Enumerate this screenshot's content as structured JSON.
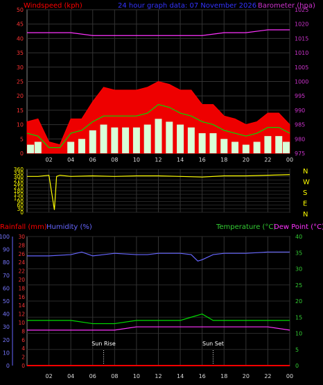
{
  "chart_data": [
    {
      "type": "line",
      "title": "24 hour graph data: 07 November 2026",
      "left_axis_label": "Windspeed (kph)",
      "right_axis_label": "Barometer (hpa)",
      "x_ticks": [
        "02",
        "04",
        "06",
        "08",
        "10",
        "12",
        "14",
        "16",
        "18",
        "20",
        "22",
        "00"
      ],
      "x_range_hours": [
        0,
        24
      ],
      "grid": true,
      "left_ylim": [
        0,
        50
      ],
      "left_ticks": [
        0,
        5,
        10,
        15,
        20,
        25,
        30,
        35,
        40,
        45,
        50
      ],
      "right_ylim": [
        975,
        1025
      ],
      "right_ticks": [
        975,
        980,
        985,
        990,
        995,
        1000,
        1005,
        1010,
        1015,
        1020,
        1025
      ],
      "series": [
        {
          "color": "#ff0000",
          "style": "area",
          "x": [
            0,
            1,
            2,
            3,
            4,
            5,
            6,
            7,
            8,
            9,
            10,
            11,
            12,
            13,
            14,
            15,
            16,
            17,
            18,
            19,
            20,
            21,
            22,
            23,
            24
          ],
          "values": [
            11,
            12,
            4,
            3,
            12,
            12,
            18,
            23,
            22,
            22,
            22,
            23,
            25,
            24,
            22,
            22,
            17,
            17,
            13,
            12,
            10,
            11,
            14,
            14,
            10
          ]
        },
        {
          "color": "#00cc00",
          "style": "line",
          "x": [
            0,
            1,
            2,
            3,
            4,
            5,
            6,
            7,
            8,
            9,
            10,
            11,
            12,
            13,
            14,
            15,
            16,
            17,
            18,
            19,
            20,
            21,
            22,
            23,
            24
          ],
          "values": [
            7,
            6,
            2,
            2,
            7,
            8,
            11,
            13,
            13,
            13,
            13,
            14,
            17,
            16,
            14,
            13,
            11,
            10,
            8,
            7,
            6,
            7,
            9,
            9,
            7
          ]
        },
        {
          "color": "#ffffff",
          "style": "bars",
          "x": [
            0,
            1,
            2,
            3,
            4,
            5,
            6,
            7,
            8,
            9,
            10,
            11,
            12,
            13,
            14,
            15,
            16,
            17,
            18,
            19,
            20,
            21,
            22,
            23,
            24
          ],
          "values": [
            3,
            4,
            0,
            0,
            4,
            5,
            8,
            10,
            9,
            9,
            9,
            10,
            12,
            11,
            10,
            9,
            7,
            7,
            5,
            4,
            3,
            4,
            6,
            6,
            4
          ]
        },
        {
          "color": "#ff00ff",
          "style": "line",
          "axis": "right",
          "x": [
            0,
            2,
            4,
            6,
            8,
            10,
            12,
            14,
            16,
            18,
            20,
            22,
            24
          ],
          "values": [
            1017,
            1017,
            1017,
            1016,
            1016,
            1016,
            1016,
            1016,
            1016,
            1017,
            1017,
            1018,
            1018
          ]
        }
      ]
    },
    {
      "type": "line",
      "title": "",
      "ylim": [
        0,
        360
      ],
      "y_ticks": [
        0,
        30,
        60,
        90,
        120,
        150,
        180,
        210,
        240,
        270,
        300,
        330,
        360
      ],
      "compass_labels": [
        "N",
        "W",
        "S",
        "E",
        "N"
      ],
      "series": [
        {
          "color": "#ffff00",
          "x": [
            0,
            1,
            2,
            2.5,
            2.7,
            3,
            4,
            6,
            8,
            10,
            12,
            14,
            16,
            18,
            20,
            22,
            24
          ],
          "values": [
            300,
            300,
            310,
            20,
            300,
            310,
            300,
            305,
            300,
            305,
            305,
            300,
            295,
            305,
            305,
            310,
            315
          ]
        }
      ]
    },
    {
      "type": "line",
      "left_axis_label_1": "Rainfall (mm)",
      "left_axis_label_2": "Humidity (%)",
      "right_axis_label_1": "Temperature (°C)",
      "right_axis_label_2": "Dew Point (°C)",
      "humidity_ylim": [
        0,
        100
      ],
      "humidity_ticks": [
        0,
        10,
        20,
        30,
        40,
        50,
        60,
        70,
        80,
        90,
        100
      ],
      "rain_ylim": [
        0,
        30
      ],
      "rain_ticks": [
        0,
        2,
        4,
        6,
        8,
        10,
        12,
        14,
        16,
        18,
        20,
        22,
        24,
        26,
        28,
        30
      ],
      "temp_ylim": [
        0,
        40
      ],
      "temp_ticks": [
        0,
        5,
        10,
        15,
        20,
        25,
        30,
        35,
        40
      ],
      "annotations": [
        {
          "label": "Sun Rise",
          "x": 7
        },
        {
          "label": "Sun Set",
          "x": 17
        }
      ],
      "series": [
        {
          "color": "#ff0000",
          "axis": "rain",
          "x": [
            0,
            24
          ],
          "values": [
            0,
            0
          ]
        },
        {
          "color": "#6666ff",
          "axis": "humidity",
          "x": [
            0,
            2,
            4,
            5,
            6,
            7,
            8,
            10,
            11,
            12,
            14,
            15,
            15.6,
            16,
            17,
            18,
            20,
            22,
            24
          ],
          "values": [
            85,
            85,
            86,
            88,
            85,
            86,
            87,
            86,
            86,
            87,
            87,
            86,
            81,
            82,
            86,
            87,
            87,
            88,
            88
          ]
        },
        {
          "color": "#00cc00",
          "axis": "temp",
          "x": [
            0,
            2,
            4,
            6,
            8,
            10,
            12,
            14,
            15,
            16,
            17,
            18,
            20,
            22,
            24
          ],
          "values": [
            14,
            14,
            14,
            13,
            13,
            14,
            14,
            14,
            15,
            16,
            14,
            14,
            14,
            14,
            14
          ]
        },
        {
          "color": "#ff00ff",
          "axis": "temp",
          "x": [
            0,
            2,
            4,
            6,
            8,
            10,
            12,
            14,
            16,
            18,
            20,
            22,
            24
          ],
          "values": [
            11,
            11,
            11,
            11,
            11,
            12,
            12,
            12,
            12,
            12,
            12,
            12,
            11
          ]
        }
      ]
    }
  ]
}
